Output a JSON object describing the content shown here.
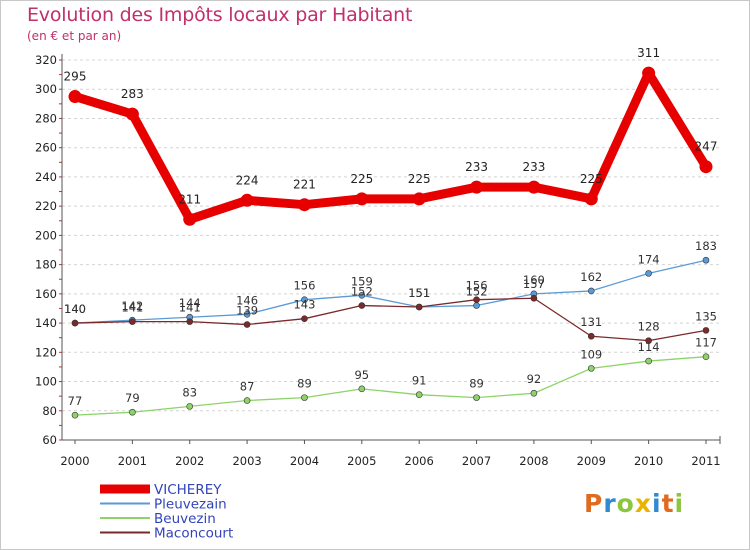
{
  "title": "Evolution des Impôts locaux par Habitant",
  "subtitle": "(en € et par an)",
  "logo": {
    "text": "Proxiti",
    "letter_colors": [
      "#e06b1f",
      "#2f8ad0",
      "#8cc63f",
      "#e8b400",
      "#2f8ad0",
      "#e06b1f",
      "#8cc63f"
    ]
  },
  "chart_data": {
    "type": "line",
    "title": "Evolution des Impôts locaux par Habitant",
    "subtitle": "(en € et par an)",
    "xlabel": "",
    "ylabel": "",
    "ylim": [
      60,
      320
    ],
    "yticks": [
      60,
      80,
      100,
      120,
      140,
      160,
      180,
      200,
      220,
      240,
      260,
      280,
      300,
      320
    ],
    "x": [
      "2000",
      "2001",
      "2002",
      "2003",
      "2004",
      "2005",
      "2006",
      "2007",
      "2008",
      "2009",
      "2010",
      "2011"
    ],
    "grid": "horizontal dashed",
    "legend_position": "bottom-left",
    "series": [
      {
        "name": "VICHEREY",
        "color": "#e60000",
        "values": [
          295,
          283,
          211,
          224,
          221,
          225,
          225,
          233,
          233,
          225,
          311,
          247
        ],
        "labels": [
          "295",
          "283",
          "211",
          "224",
          "221",
          "225",
          "225",
          "233",
          "233",
          "225",
          "311",
          "247"
        ]
      },
      {
        "name": "Pleuvezain",
        "color": "#5b9bd5",
        "values": [
          140,
          142,
          144,
          146,
          156,
          159,
          151,
          152,
          160,
          162,
          174,
          183
        ],
        "labels": [
          "140",
          "142",
          "144",
          "146",
          "156",
          "159",
          "151",
          "152",
          "160",
          "162",
          "174",
          "183"
        ]
      },
      {
        "name": "Beuvezin",
        "color": "#8ed36a",
        "values": [
          77,
          79,
          83,
          87,
          89,
          95,
          91,
          89,
          92,
          109,
          114,
          117
        ],
        "labels": [
          "77",
          "79",
          "83",
          "87",
          "89",
          "95",
          "91",
          "89",
          "92",
          "109",
          "114",
          "117"
        ]
      },
      {
        "name": "Maconcourt",
        "color": "#7a2a2a",
        "values": [
          140,
          141,
          141,
          139,
          143,
          152,
          151,
          156,
          157,
          131,
          128,
          135
        ],
        "labels": [
          "140",
          "141",
          "141",
          "139",
          "143",
          "152",
          "151",
          "156",
          "157",
          "131",
          "128",
          "135"
        ]
      }
    ]
  }
}
